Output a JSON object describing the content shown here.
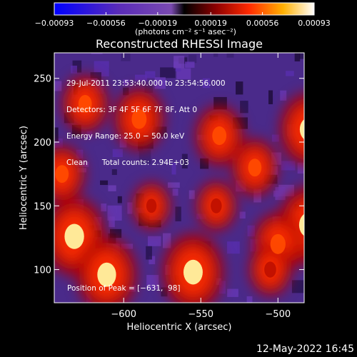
{
  "chart_data": {
    "type": "heatmap",
    "title": "Reconstructed RHESSI Image",
    "xlabel": "Heliocentric X (arcsec)",
    "ylabel": "Heliocentric Y (arcsec)",
    "xlim": [
      -645,
      -483
    ],
    "ylim": [
      74,
      270
    ],
    "x_ticks": [
      -600,
      -550,
      -500
    ],
    "y_ticks": [
      100,
      150,
      200,
      250
    ],
    "x_tick_labels": [
      "−600",
      "−550",
      "−500"
    ],
    "y_tick_labels": [
      "100",
      "150",
      "200",
      "250"
    ],
    "colorbar": {
      "range": [
        -0.00093,
        0.00093
      ],
      "ticks": [
        -0.00093,
        -0.00056,
        -0.00019,
        0.00019,
        0.00056,
        0.00093
      ],
      "tick_labels": [
        "−0.00093",
        "−0.00056",
        "−0.00019",
        "0.00019",
        "0.00056",
        "0.00093"
      ],
      "unit_label": "(photons cm⁻² s⁻¹ asec⁻²)"
    },
    "annotations": [
      "29-Jul-2011 23:53:40.000 to 23:54:56.000",
      "Detectors: 3F 4F 5F 6F 7F 8F, Att 0",
      "Energy Range: 25.0 − 50.0 keV",
      "Clean      Total counts: 2.94E+03"
    ],
    "peak_label": "Position of Peak = [−631,  98]",
    "hotspots": [
      {
        "x": -632,
        "y": 126,
        "value": 0.0009
      },
      {
        "x": -611,
        "y": 96,
        "value": 0.00085
      },
      {
        "x": -555,
        "y": 98,
        "value": 0.00088
      },
      {
        "x": -480,
        "y": 135,
        "value": 0.00089
      },
      {
        "x": -480,
        "y": 210,
        "value": 0.0008
      },
      {
        "x": -590,
        "y": 218,
        "value": 0.0006
      },
      {
        "x": -538,
        "y": 205,
        "value": 0.00055
      },
      {
        "x": -515,
        "y": 180,
        "value": 0.0005
      },
      {
        "x": -640,
        "y": 175,
        "value": 0.0005
      },
      {
        "x": -500,
        "y": 120,
        "value": 0.00062
      },
      {
        "x": -540,
        "y": 150,
        "value": 0.00035
      },
      {
        "x": -582,
        "y": 150,
        "value": 0.0003
      },
      {
        "x": -625,
        "y": 230,
        "value": 0.0005
      },
      {
        "x": -505,
        "y": 100,
        "value": 0.0004
      }
    ]
  },
  "footer": {
    "timestamp": "12-May-2022 16:45"
  }
}
